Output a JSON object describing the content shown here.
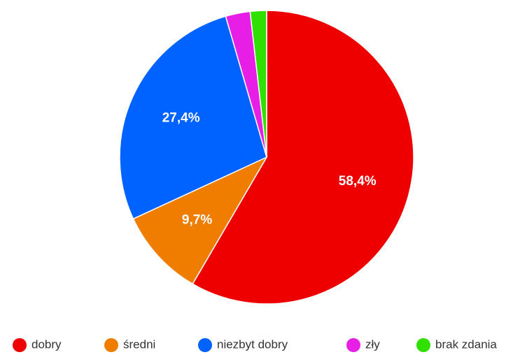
{
  "chart_data": {
    "type": "pie",
    "title": "",
    "categories": [
      "dobry",
      "średni",
      "niezbyt dobry",
      "zły",
      "brak zdania"
    ],
    "values": [
      58.4,
      9.7,
      27.4,
      2.7,
      1.8
    ],
    "value_labels": [
      "58,4%",
      "9,7%",
      "27,4%",
      "",
      ""
    ],
    "colors": [
      "#ee0000",
      "#ef7d00",
      "#0062ff",
      "#e61ee6",
      "#2fe000"
    ],
    "start_angle_deg": 0,
    "direction": "clockwise",
    "legend_position": "bottom"
  }
}
